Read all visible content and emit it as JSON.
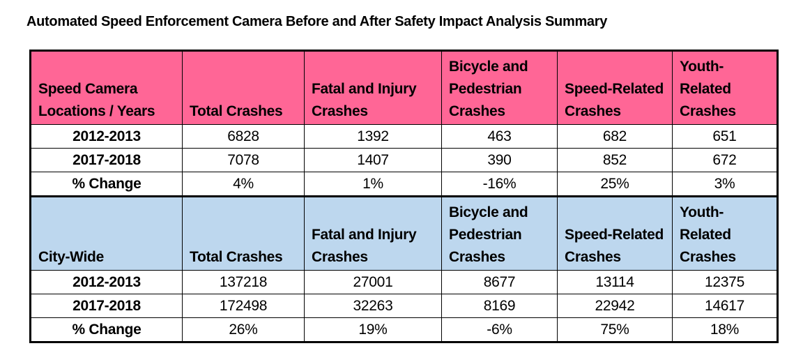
{
  "title": "Automated Speed Enforcement Camera Before and After Safety Impact Analysis Summary",
  "colors": {
    "speed_camera_header": "#ff6696",
    "city_wide_header": "#bdd7ee"
  },
  "sections": [
    {
      "headers": [
        "Speed Camera Locations / Years",
        "Total Crashes",
        "Fatal and Injury Crashes",
        "Bicycle and Pedestrian Crashes",
        "Speed-Related Crashes",
        "Youth-Related Crashes"
      ],
      "rows": [
        [
          "2012-2013",
          "6828",
          "1392",
          "463",
          "682",
          "651"
        ],
        [
          "2017-2018",
          "7078",
          "1407",
          "390",
          "852",
          "672"
        ],
        [
          "% Change",
          "4%",
          "1%",
          "-16%",
          "25%",
          "3%"
        ]
      ]
    },
    {
      "headers": [
        "City-Wide",
        "Total Crashes",
        "Fatal and Injury Crashes",
        "Bicycle and Pedestrian Crashes",
        "Speed-Related Crashes",
        "Youth-Related Crashes"
      ],
      "rows": [
        [
          "2012-2013",
          "137218",
          "27001",
          "8677",
          "13114",
          "12375"
        ],
        [
          "2017-2018",
          "172498",
          "32263",
          "8169",
          "22942",
          "14617"
        ],
        [
          "% Change",
          "26%",
          "19%",
          "-6%",
          "75%",
          "18%"
        ]
      ]
    }
  ]
}
